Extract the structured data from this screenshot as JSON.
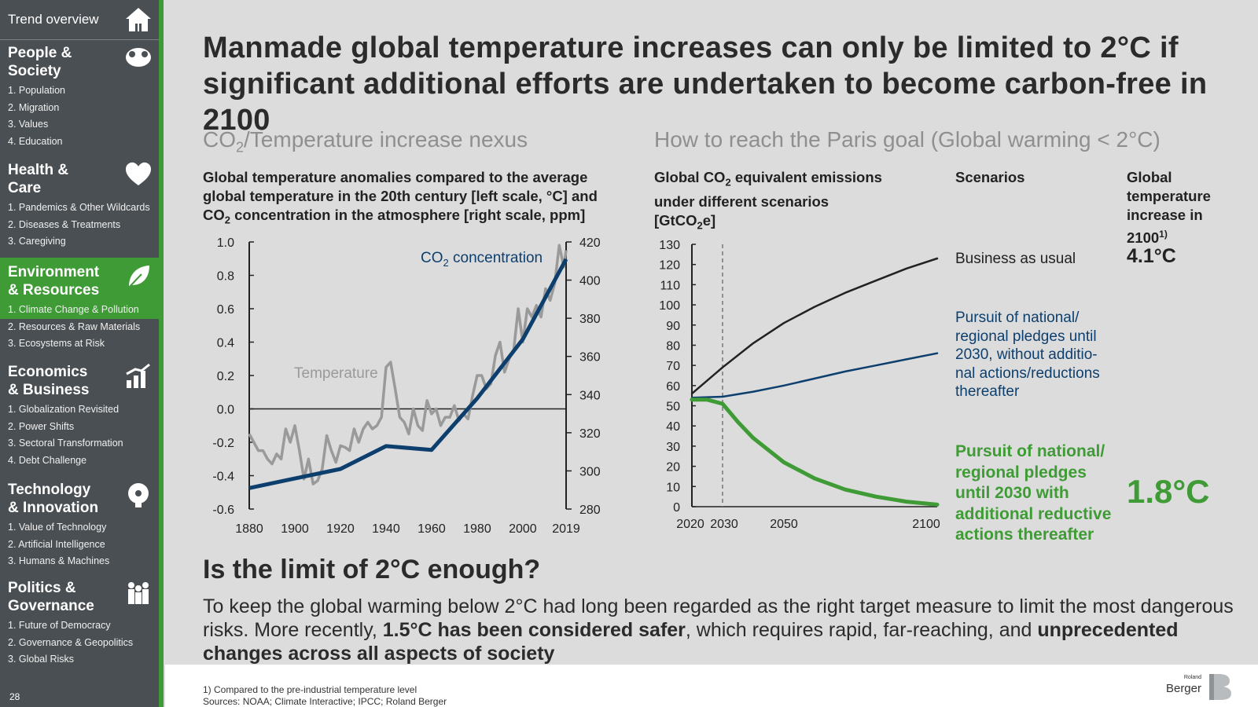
{
  "sidebar": {
    "trend_overview": "Trend overview",
    "page_number": "28",
    "sections": [
      {
        "title_line1": "People &",
        "title_line2": "Society",
        "icon": "group-of-people-icon",
        "items": [
          "1. Population",
          "2. Migration",
          "3. Values",
          "4. Education"
        ]
      },
      {
        "title_line1": "Health &",
        "title_line2": "Care",
        "icon": "heart-icon",
        "items": [
          "1. Pandemics & Other Wildcards",
          "2. Diseases & Treatments",
          "3. Caregiving"
        ]
      },
      {
        "title_line1": "Environment",
        "title_line2": "& Resources",
        "icon": "leaf-icon",
        "items": [
          "1. Climate Change & Pollution",
          "2. Resources & Raw Materials",
          "3. Ecosystems at Risk"
        ]
      },
      {
        "title_line1": "Economics",
        "title_line2": "& Business",
        "icon": "growth-chart-icon",
        "items": [
          "1. Globalization Revisited",
          "2. Power Shifts",
          "3. Sectoral Transformation",
          "4. Debt Challenge"
        ]
      },
      {
        "title_line1": "Technology",
        "title_line2": "& Innovation",
        "icon": "gear-head-icon",
        "items": [
          "1. Value of Technology",
          "2. Artificial Intelligence",
          "3. Humans & Machines"
        ]
      },
      {
        "title_line1": "Politics &",
        "title_line2": "Governance",
        "icon": "people-governance-icon",
        "items": [
          "1. Future of Democracy",
          "2. Governance & Geopolitics",
          "3. Global Risks"
        ]
      }
    ],
    "active_color": "#3f9b35"
  },
  "header": {
    "title_line1": "Manmade global temperature increases can only be limited to 2°C if",
    "title_line2": "significant additional efforts are undertaken to become carbon-free in 2100"
  },
  "left_panel": {
    "subtitle_pre": "CO",
    "subtitle_sub": "2",
    "subtitle_post": "/Temperature increase nexus",
    "desc_line1": "Global temperature anomalies compared to the average",
    "desc_line2": "global temperature in the 20th century [left scale, °C] and",
    "desc_line3_pre": "CO",
    "desc_line3_sub": "2",
    "desc_line3_post": " concentration in the atmosphere [right scale, ppm]"
  },
  "right_panel": {
    "subtitle": "How to reach the Paris goal (Global warming < 2°C)",
    "desc_line1": "Global CO",
    "desc_line1_sub": "2",
    "desc_line1_post": " equivalent emissions",
    "desc_line2": "under different scenarios",
    "desc_line3_pre": "[GtCO",
    "desc_line3_sub": "2",
    "desc_line3_post": "e]",
    "col_scenarios": "Scenarios",
    "col_temp_line1": "Global",
    "col_temp_line2": "temperature",
    "col_temp_line3": "increase in",
    "col_temp_line4": "2100",
    "col_temp_sup": "1)",
    "scenarios": [
      {
        "lines": [
          "Business as usual"
        ],
        "temp": "4.1°C",
        "color": "#222222"
      },
      {
        "lines": [
          "Pursuit of national/",
          "regional pledges until",
          "2030, without additio-",
          "nal actions/reductions",
          "thereafter"
        ],
        "temp": "",
        "color": "#0d3f6e"
      },
      {
        "lines": [
          "Pursuit of national/",
          "regional pledges",
          "until 2030 with",
          "additional reductive",
          "actions thereafter"
        ],
        "temp": "1.8°C",
        "color": "#3f9b35"
      }
    ]
  },
  "question": {
    "title": "Is the limit of 2°C enough?",
    "body_part1": "To keep the global warming below 2°C had long been regarded as the right target measure to limit the most dangerous risks. More recently, ",
    "body_bold1": "1.5°C has been considered safer",
    "body_part2": ", which requires rapid, far-reaching, and ",
    "body_bold2": "unprecedented changes across all aspects of society"
  },
  "footer": {
    "note1": "1) Compared to the pre-industrial temperature level",
    "note2": "Sources: NOAA; Climate Interactive; IPCC; Roland Berger",
    "logo_small": "Roland",
    "logo_big": "Berger"
  },
  "chart_data": [
    {
      "type": "line",
      "title": "",
      "xlabel": "",
      "ylabel_left": "",
      "ylabel_right": "",
      "x_ticks": [
        "1880",
        "1900",
        "1920",
        "1940",
        "1960",
        "1980",
        "2000",
        "2019"
      ],
      "ylim_left": [
        -0.6,
        1.0
      ],
      "y_ticks_left": [
        "1.0",
        "0.8",
        "0.6",
        "0.4",
        "0.2",
        "0.0",
        "-0.2",
        "-0.4",
        "-0.6"
      ],
      "ylim_right": [
        280,
        420
      ],
      "y_ticks_right": [
        "420",
        "400",
        "380",
        "360",
        "340",
        "320",
        "300",
        "280"
      ],
      "series": [
        {
          "name": "Temperature",
          "axis": "left",
          "color": "#9a9a9a",
          "x": [
            1880,
            1882,
            1884,
            1886,
            1888,
            1890,
            1892,
            1894,
            1896,
            1898,
            1900,
            1902,
            1904,
            1906,
            1908,
            1910,
            1912,
            1914,
            1916,
            1918,
            1920,
            1922,
            1924,
            1926,
            1928,
            1930,
            1932,
            1934,
            1936,
            1938,
            1940,
            1942,
            1944,
            1946,
            1948,
            1950,
            1952,
            1954,
            1956,
            1958,
            1960,
            1962,
            1964,
            1966,
            1968,
            1970,
            1972,
            1974,
            1976,
            1978,
            1980,
            1982,
            1984,
            1986,
            1988,
            1990,
            1992,
            1994,
            1996,
            1998,
            2000,
            2002,
            2004,
            2006,
            2008,
            2010,
            2012,
            2014,
            2016,
            2018,
            2019
          ],
          "values": [
            -0.15,
            -0.2,
            -0.25,
            -0.25,
            -0.3,
            -0.33,
            -0.27,
            -0.3,
            -0.12,
            -0.2,
            -0.1,
            -0.25,
            -0.42,
            -0.3,
            -0.45,
            -0.43,
            -0.36,
            -0.16,
            -0.25,
            -0.32,
            -0.22,
            -0.23,
            -0.25,
            -0.12,
            -0.2,
            -0.12,
            -0.08,
            -0.12,
            -0.1,
            -0.05,
            0.25,
            0.28,
            0.12,
            -0.05,
            -0.08,
            -0.15,
            0.0,
            -0.1,
            -0.13,
            0.05,
            -0.03,
            0.0,
            -0.1,
            -0.05,
            -0.05,
            0.02,
            -0.07,
            -0.03,
            -0.06,
            0.08,
            0.2,
            0.2,
            0.12,
            0.15,
            0.32,
            0.4,
            0.22,
            0.3,
            0.35,
            0.6,
            0.4,
            0.6,
            0.55,
            0.62,
            0.55,
            0.72,
            0.65,
            0.75,
            0.98,
            0.85,
            0.95
          ]
        },
        {
          "name": "CO2 concentration",
          "axis": "right",
          "color": "#0d3f6e",
          "x": [
            1880,
            1900,
            1920,
            1940,
            1960,
            1980,
            2000,
            2019
          ],
          "values": [
            291,
            296,
            301,
            313,
            311,
            338,
            369,
            411
          ]
        }
      ]
    },
    {
      "type": "line",
      "title": "",
      "xlabel": "",
      "ylabel": "",
      "x_ticks": [
        "2020",
        "2030",
        "2050",
        "2100"
      ],
      "ylim": [
        0,
        130
      ],
      "y_ticks": [
        "0",
        "10",
        "20",
        "30",
        "40",
        "50",
        "60",
        "70",
        "80",
        "90",
        "100",
        "110",
        "120",
        "130"
      ],
      "reference_line_x": 2030,
      "series": [
        {
          "name": "Business as usual",
          "color": "#222222",
          "x": [
            2020,
            2030,
            2040,
            2050,
            2060,
            2070,
            2080,
            2090,
            2100
          ],
          "values": [
            56,
            69,
            81,
            91,
            99,
            106,
            112,
            118,
            123
          ]
        },
        {
          "name": "Pursuit of national/regional pledges until 2030, without additional actions/reductions thereafter",
          "color": "#0d3f6e",
          "x": [
            2020,
            2030,
            2040,
            2050,
            2060,
            2070,
            2080,
            2090,
            2100
          ],
          "values": [
            54,
            54.5,
            57,
            60,
            63.5,
            67,
            70,
            73,
            76
          ]
        },
        {
          "name": "Pursuit of national/regional pledges until 2030 with additional reductive actions thereafter",
          "color": "#3f9b35",
          "x": [
            2020,
            2025,
            2030,
            2035,
            2040,
            2050,
            2060,
            2070,
            2080,
            2090,
            2100
          ],
          "values": [
            53,
            53,
            51,
            42,
            34,
            22,
            14,
            8.5,
            5,
            2.5,
            1
          ]
        }
      ]
    }
  ]
}
